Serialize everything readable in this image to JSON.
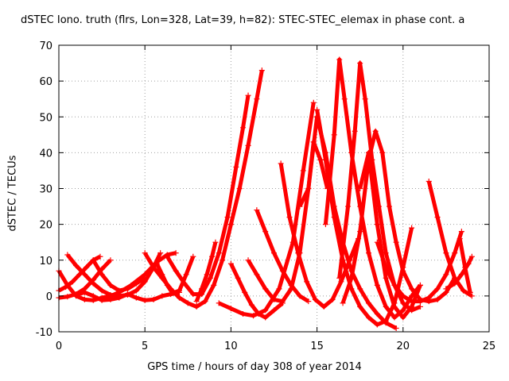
{
  "chart_data": {
    "type": "scatter",
    "title": "dSTEC Iono. truth (flrs, Lon=328, Lat=39, h=82): STEC-STEC_elemax in phase cont. a",
    "xlabel": "GPS time / hours of day 308 of year 2014",
    "ylabel": "dSTEC  / TECUs",
    "xlim": [
      0,
      25
    ],
    "ylim": [
      -10,
      70
    ],
    "xticks": [
      "0",
      "5",
      "10",
      "15",
      "20",
      "25"
    ],
    "yticks": [
      "-10",
      "0",
      "10",
      "20",
      "30",
      "40",
      "50",
      "60",
      "70"
    ],
    "grid": true,
    "marker": "+",
    "color": "#ff0000",
    "series": [
      {
        "x": [
          0.0,
          0.5,
          1.0,
          1.5,
          2.0,
          2.5,
          3.0,
          3.5,
          4.2,
          5.0,
          5.7,
          6.3,
          6.8
        ],
        "y": [
          7.0,
          3.0,
          0.0,
          -1.0,
          -1.2,
          -0.5,
          0.0,
          1.0,
          3.0,
          6.0,
          9.5,
          11.5,
          12.0
        ]
      },
      {
        "x": [
          0.5,
          1.0,
          1.5,
          2.0,
          2.5,
          3.0,
          3.5,
          4.0,
          4.5,
          5.0,
          5.5,
          5.9
        ],
        "y": [
          11.5,
          8.5,
          6.0,
          3.5,
          1.5,
          0.3,
          0.0,
          0.3,
          1.5,
          4.0,
          8.0,
          12.0
        ]
      },
      {
        "x": [
          0.0,
          0.4,
          0.8,
          1.2,
          1.6,
          2.0,
          2.4
        ],
        "y": [
          1.5,
          2.5,
          4.0,
          6.0,
          8.0,
          10.0,
          11.0
        ]
      },
      {
        "x": [
          0.0,
          0.5,
          1.0,
          1.5,
          2.0,
          2.5,
          3.0
        ],
        "y": [
          -0.5,
          -0.2,
          0.5,
          2.0,
          4.5,
          7.5,
          10.0
        ]
      },
      {
        "x": [
          2.0,
          2.5,
          3.0,
          3.5,
          4.0,
          4.5,
          5.0
        ],
        "y": [
          10.0,
          6.0,
          3.0,
          1.5,
          2.0,
          3.5,
          5.0
        ]
      },
      {
        "x": [
          1.0,
          1.5,
          2.0,
          2.5,
          3.0,
          3.5,
          4.0,
          4.5,
          5.0,
          5.5,
          6.0,
          6.5,
          7.0
        ],
        "y": [
          0.3,
          1.0,
          0.0,
          -1.2,
          -1.0,
          -0.5,
          0.5,
          -0.5,
          -1.2,
          -1.0,
          0.0,
          0.5,
          1.0
        ]
      },
      {
        "x": [
          5.0,
          5.5,
          6.0,
          6.5,
          7.0,
          7.5,
          8.0,
          8.5,
          9.0,
          9.5,
          10.0,
          10.5,
          11.0,
          11.5,
          11.8
        ],
        "y": [
          12.0,
          8.0,
          5.0,
          2.0,
          -0.5,
          -2.0,
          -3.0,
          -1.5,
          3.0,
          10.0,
          20.0,
          30.0,
          42.0,
          55.0,
          63.0
        ]
      },
      {
        "x": [
          6.3,
          6.8,
          7.3,
          7.8,
          8.3,
          8.8,
          9.3,
          9.8,
          10.3,
          10.7,
          11.0
        ],
        "y": [
          11.0,
          7.0,
          3.5,
          0.5,
          0.5,
          5.0,
          12.0,
          22.0,
          36.0,
          47.0,
          56.0
        ]
      },
      {
        "x": [
          5.7,
          6.0,
          6.3,
          6.6,
          7.0,
          7.4,
          7.8
        ],
        "y": [
          9.0,
          6.0,
          3.0,
          0.8,
          1.5,
          6.0,
          11.0
        ]
      },
      {
        "x": [
          8.0,
          8.3,
          8.6,
          8.9,
          9.1
        ],
        "y": [
          -1.5,
          2.0,
          6.0,
          11.0,
          15.0
        ]
      },
      {
        "x": [
          10.0,
          10.4,
          10.8,
          11.2,
          11.6,
          12.0,
          12.5,
          13.0
        ],
        "y": [
          9.0,
          5.0,
          1.0,
          -2.5,
          -5.0,
          -6.0,
          -4.0,
          -2.0
        ]
      },
      {
        "x": [
          9.3,
          10.0,
          10.7,
          11.3,
          12.0,
          12.8,
          13.6,
          14.2,
          14.8
        ],
        "y": [
          -2.0,
          -3.5,
          -5.0,
          -5.5,
          -4.0,
          2.0,
          15.0,
          35.0,
          54.0
        ]
      },
      {
        "x": [
          11.5,
          12.0,
          12.5,
          13.0,
          13.5,
          14.0,
          14.5
        ],
        "y": [
          24.0,
          18.0,
          12.0,
          7.0,
          3.0,
          0.0,
          -1.5
        ]
      },
      {
        "x": [
          11.0,
          11.5,
          12.0,
          12.5,
          13.0,
          13.5,
          14.0,
          14.5,
          14.8,
          15.2,
          15.6
        ],
        "y": [
          10.0,
          6.0,
          2.0,
          -1.0,
          -1.5,
          2.0,
          12.0,
          30.0,
          43.0,
          38.0,
          30.0
        ]
      },
      {
        "x": [
          12.9,
          13.4,
          13.9,
          14.4,
          14.9,
          15.4,
          15.9,
          16.4,
          16.9,
          17.4
        ],
        "y": [
          37.0,
          22.0,
          12.0,
          4.0,
          -1.0,
          -3.0,
          -1.0,
          4.0,
          10.0,
          16.0
        ]
      },
      {
        "x": [
          14.0,
          14.5,
          15.0,
          15.5,
          16.0,
          16.5,
          17.0,
          17.5,
          18.0,
          18.5,
          19.0,
          19.6
        ],
        "y": [
          25.0,
          30.0,
          50.0,
          40.0,
          25.0,
          15.0,
          7.0,
          2.0,
          -2.0,
          -5.0,
          -7.5,
          -9.0
        ]
      },
      {
        "x": [
          15.0,
          15.5,
          16.0,
          16.5,
          17.0,
          17.5,
          18.0,
          18.5,
          19.0,
          19.5,
          20.0,
          20.5
        ],
        "y": [
          52.0,
          38.0,
          22.0,
          10.0,
          2.0,
          -3.0,
          -6.0,
          -8.0,
          -7.0,
          -2.0,
          8.0,
          19.0
        ]
      },
      {
        "x": [
          15.5,
          16.0,
          16.3,
          16.6,
          17.0,
          17.5,
          18.0,
          18.5,
          19.0,
          19.5,
          20.0,
          20.5,
          21.0
        ],
        "y": [
          20.0,
          45.0,
          66.0,
          55.0,
          40.0,
          25.0,
          12.0,
          3.0,
          -3.0,
          -6.0,
          -4.0,
          0.0,
          3.0
        ]
      },
      {
        "x": [
          16.3,
          16.8,
          17.2,
          17.5,
          17.8,
          18.2,
          18.6,
          19.0,
          19.5,
          20.0,
          20.5,
          21.0
        ],
        "y": [
          5.0,
          25.0,
          46.0,
          65.0,
          55.0,
          38.0,
          25.0,
          12.0,
          3.0,
          -2.0,
          -4.0,
          -3.0
        ]
      },
      {
        "x": [
          16.5,
          17.0,
          17.5,
          18.0,
          18.4,
          18.8,
          19.2,
          19.6,
          20.0,
          20.5,
          21.0,
          21.5,
          22.0,
          22.5,
          23.0
        ],
        "y": [
          -2.0,
          5.0,
          18.0,
          38.0,
          46.0,
          40.0,
          25.0,
          15.0,
          7.0,
          2.0,
          -1.0,
          -1.5,
          -1.0,
          1.0,
          5.0
        ]
      },
      {
        "x": [
          17.5,
          18.0,
          18.5,
          19.0,
          19.5,
          20.0,
          20.5,
          21.0
        ],
        "y": [
          30.0,
          40.0,
          20.0,
          5.0,
          -3.0,
          -6.0,
          -3.0,
          3.0
        ]
      },
      {
        "x": [
          21.5,
          22.0,
          22.5,
          23.0,
          23.5,
          24.0
        ],
        "y": [
          32.0,
          22.0,
          12.0,
          5.0,
          1.5,
          0.0
        ]
      },
      {
        "x": [
          18.5,
          19.0,
          19.5,
          20.0,
          20.5,
          21.0,
          21.5,
          22.0,
          22.5,
          23.0,
          23.4
        ],
        "y": [
          15.0,
          8.0,
          3.0,
          0.0,
          -1.5,
          -1.5,
          -0.5,
          2.0,
          6.0,
          12.0,
          18.0
        ]
      },
      {
        "x": [
          23.3,
          23.6,
          23.9
        ],
        "y": [
          16.0,
          8.0,
          1.0
        ]
      },
      {
        "x": [
          22.5,
          23.0,
          23.4,
          23.8,
          24.0
        ],
        "y": [
          2.0,
          3.5,
          6.0,
          9.0,
          11.0
        ]
      }
    ]
  }
}
